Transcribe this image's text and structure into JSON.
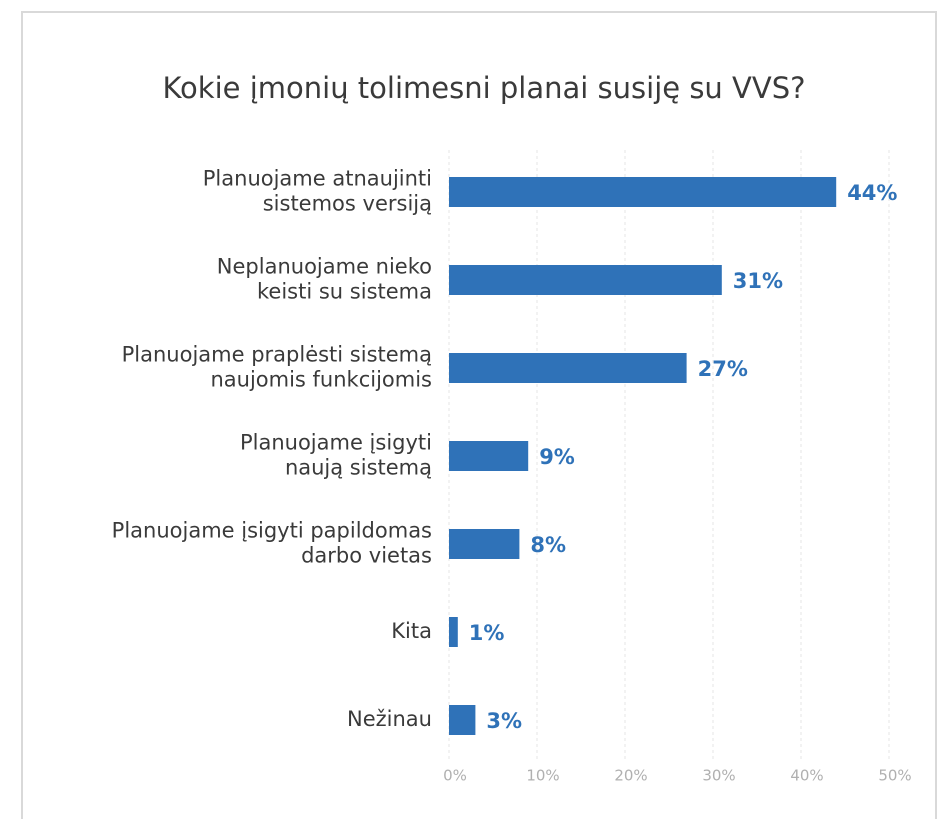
{
  "chart_data": {
    "type": "bar",
    "orientation": "horizontal",
    "title": "Kokie įmonių tolimesni planai susiję su VVS?",
    "categories": [
      "Planuojame atnaujinti\nsistemos versiją",
      "Neplanuojame nieko\nkeisti su sistema",
      "Planuojame praplėsti sistemą\nnaujomis funkcijomis",
      "Planuojame įsigyti\nnaują sistemą",
      "Planuojame įsigyti papildomas\ndarbo vietas",
      "Kita",
      "Nežinau"
    ],
    "values": [
      44,
      31,
      27,
      9,
      8,
      1,
      3
    ],
    "value_labels": [
      "44%",
      "31%",
      "27%",
      "9%",
      "8%",
      "1%",
      "3%"
    ],
    "color": "#2f72b8",
    "xlim": [
      0,
      50
    ],
    "xticks": [
      {
        "value": 0,
        "label": "0%"
      },
      {
        "value": 10,
        "label": "10%"
      },
      {
        "value": 20,
        "label": "20%"
      },
      {
        "value": 30,
        "label": "30%"
      },
      {
        "value": 40,
        "label": "40%"
      },
      {
        "value": 50,
        "label": "50%"
      }
    ],
    "grid": true
  }
}
